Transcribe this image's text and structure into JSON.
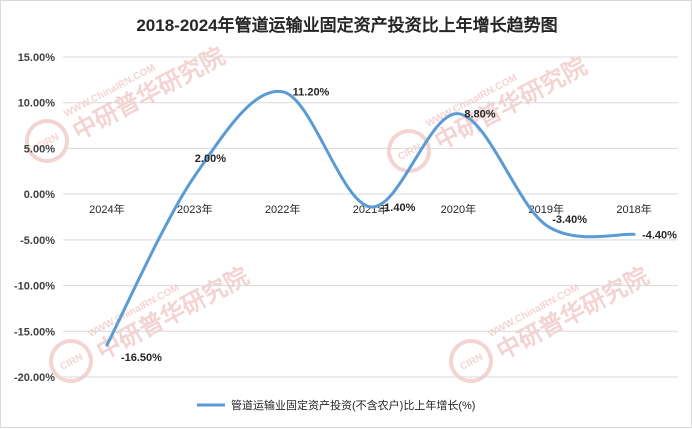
{
  "chart_data": {
    "type": "line",
    "title": "2018-2024年管道运输业固定资产投资比上年增长趋势图",
    "categories": [
      "2024年",
      "2023年",
      "2022年",
      "2021年",
      "2020年",
      "2019年",
      "2018年"
    ],
    "series": [
      {
        "name": "管道运输业固定资产投资(不含农户)比上年增长(%)",
        "values": [
          -16.5,
          2.0,
          11.2,
          -1.4,
          8.8,
          -3.4,
          -4.4
        ],
        "labels": [
          "-16.50%",
          "2.00%",
          "11.20%",
          "-1.40%",
          "8.80%",
          "-3.40%",
          "-4.40%"
        ]
      }
    ],
    "ylim": [
      -20,
      15
    ],
    "ytick_values": [
      15,
      10,
      5,
      0,
      -5,
      -10,
      -15,
      -20
    ],
    "ytick_labels": [
      "15.00%",
      "10.00%",
      "5.00%",
      "0.00%",
      "-5.00%",
      "-10.00%",
      "-15.00%",
      "-20.00%"
    ],
    "xlabel": "",
    "ylabel": "",
    "grid": true,
    "legend_position": "bottom",
    "line_color": "#5b9bd5",
    "grid_color": "#d9d9d9"
  },
  "watermark": {
    "site": "WWW.ChinaIRN.COM",
    "name": "中研普华研究院",
    "logo": "CIRN",
    "color": "#e8a0a0"
  }
}
